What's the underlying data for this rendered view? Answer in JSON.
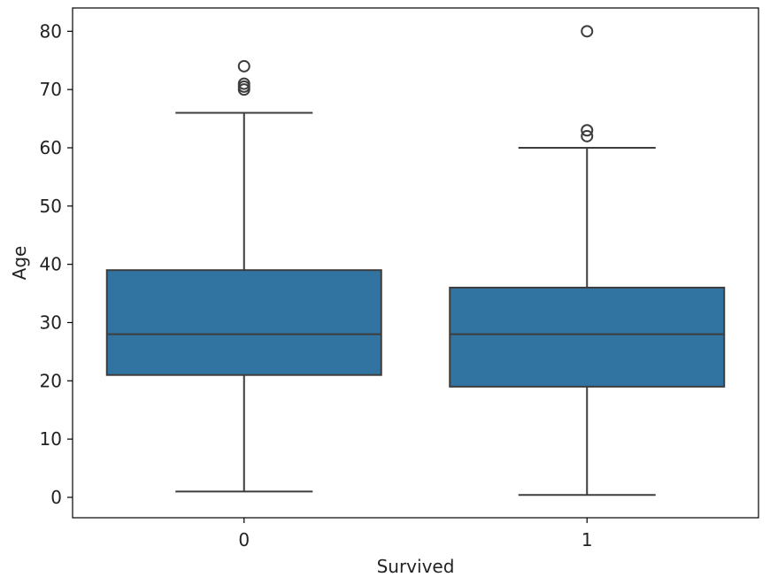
{
  "chart_data": {
    "type": "box",
    "title": "",
    "xlabel": "Survived",
    "ylabel": "Age",
    "categories": [
      "0",
      "1"
    ],
    "ylim": [
      -3.5,
      84
    ],
    "yticks": [
      0,
      10,
      20,
      30,
      40,
      50,
      60,
      70,
      80
    ],
    "grid": false,
    "box_color": "#3274a1",
    "line_color": "#3d3d3d",
    "boxes": [
      {
        "category": "0",
        "whisker_low": 1,
        "q1": 21,
        "median": 28,
        "q3": 39,
        "whisker_high": 66,
        "outliers": [
          70,
          70.5,
          71,
          74
        ]
      },
      {
        "category": "1",
        "whisker_low": 0.42,
        "q1": 19,
        "median": 28,
        "q3": 36,
        "whisker_high": 60,
        "outliers": [
          62,
          63,
          80
        ]
      }
    ]
  }
}
